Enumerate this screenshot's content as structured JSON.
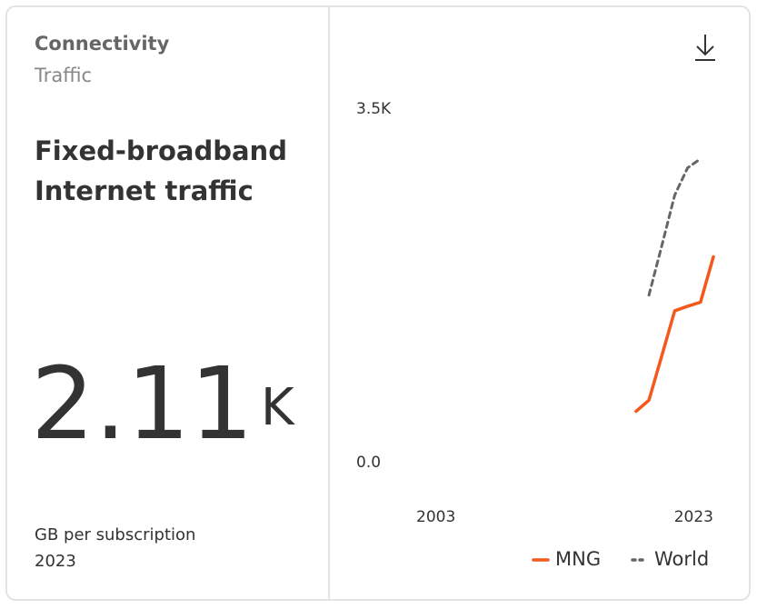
{
  "card": {
    "category": "Connectivity",
    "subcategory": "Traffic",
    "title": "Fixed-broadband Internet traffic",
    "value": "2.11",
    "value_unit": "K",
    "unit": "GB per subscription",
    "year": "2023"
  },
  "chart_data": {
    "type": "line",
    "series": [
      {
        "name": "MNG",
        "color": "#f4581c",
        "dash": false,
        "x": [
          2017,
          2018,
          2019,
          2020,
          2021,
          2022,
          2023
        ],
        "values": [
          580,
          690,
          1130,
          1575,
          1620,
          1660,
          2110
        ]
      },
      {
        "name": "World",
        "color": "#666666",
        "dash": true,
        "x": [
          2018,
          2019,
          2020,
          2021,
          2022
        ],
        "values": [
          1730,
          2220,
          2720,
          2990,
          3080
        ]
      }
    ],
    "xlim": [
      1996,
      2023
    ],
    "xticks": [
      2003,
      2023
    ],
    "ylim": [
      0,
      3500
    ],
    "yticks": [
      {
        "value": 0,
        "label": "0.0"
      },
      {
        "value": 3500,
        "label": "3.5K"
      }
    ],
    "grid": false
  }
}
